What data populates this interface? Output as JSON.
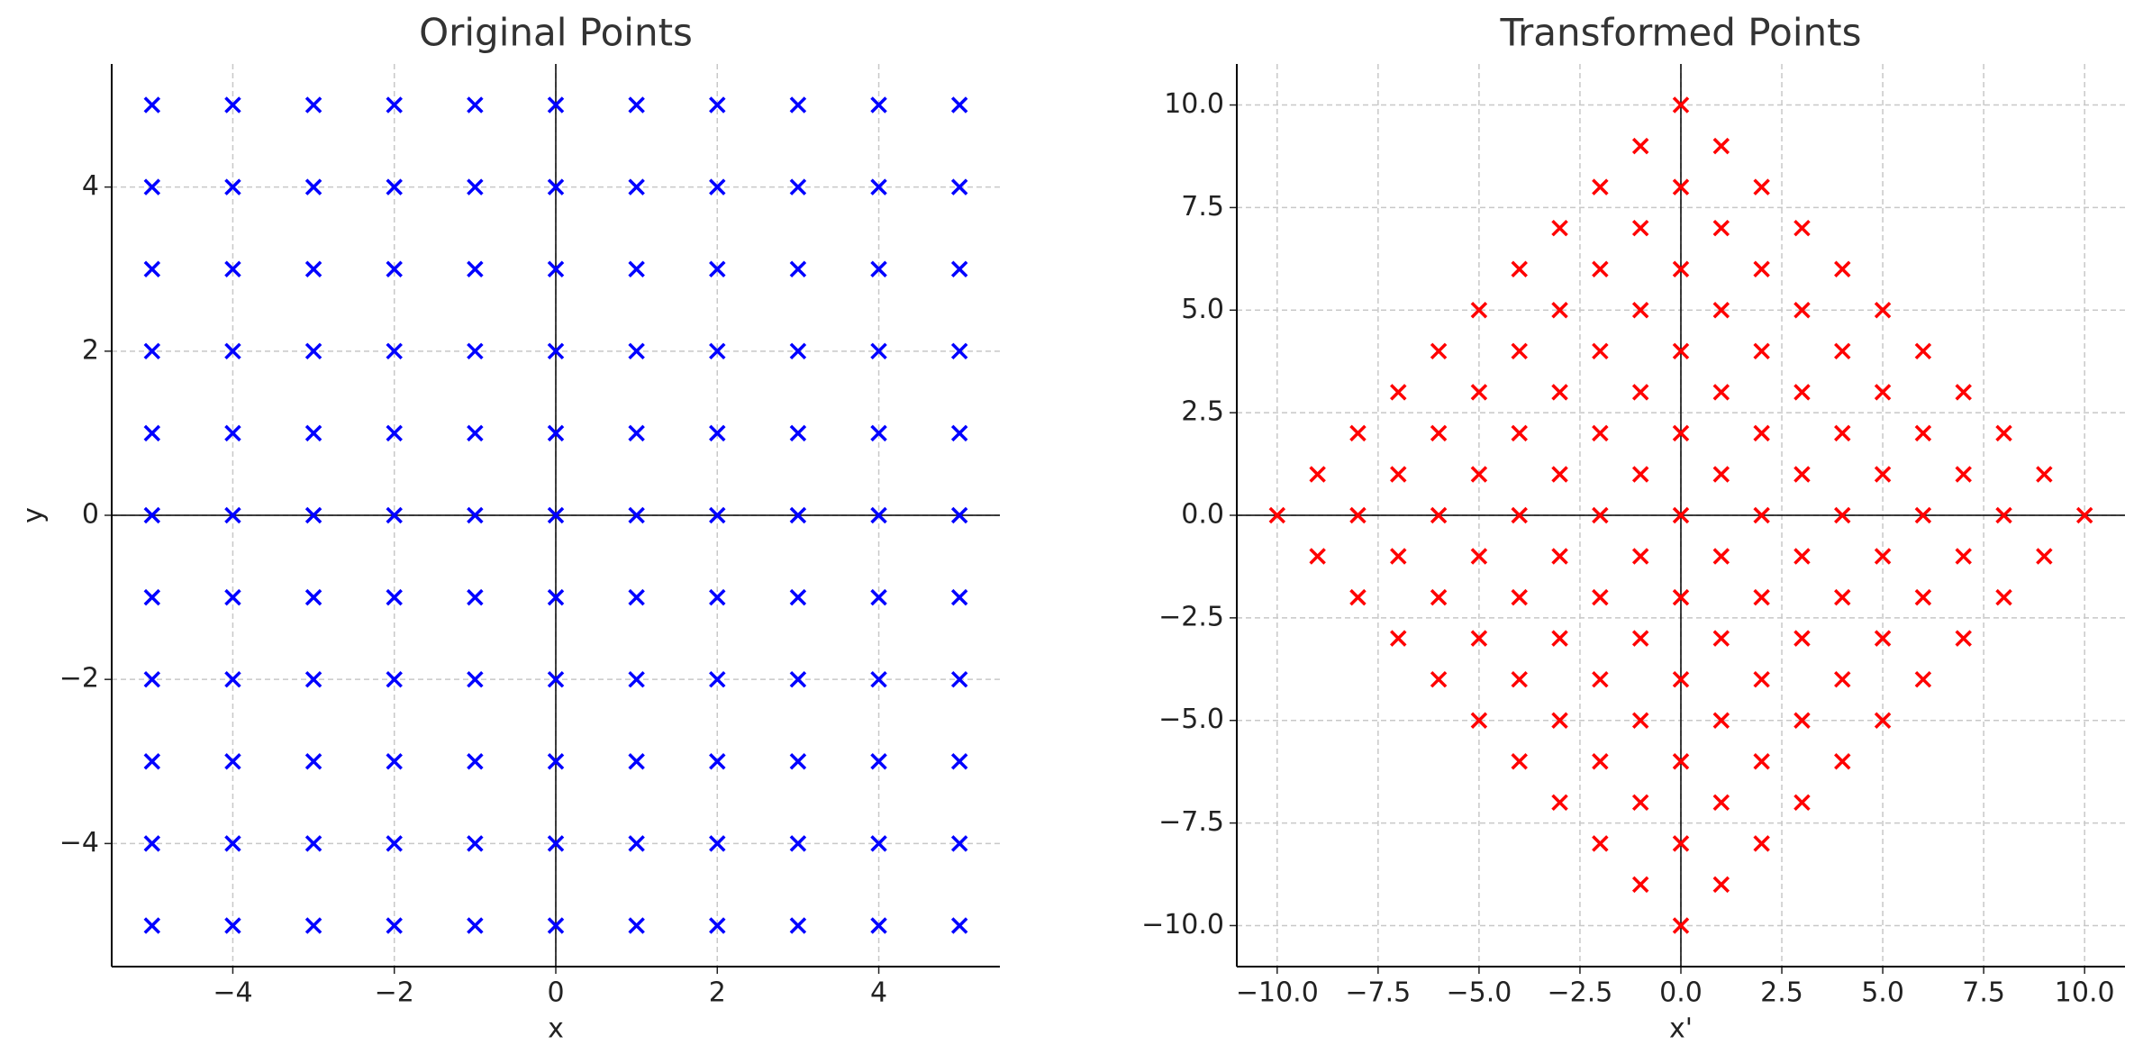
{
  "chart_data": [
    {
      "type": "scatter",
      "title": "Original Points",
      "xlabel": "x",
      "ylabel": "y",
      "color": "#0000ff",
      "marker": "x",
      "grid": true,
      "zero_lines": true,
      "xlim": [
        -5.5,
        5.5
      ],
      "ylim": [
        -5.5,
        5.5
      ],
      "xticks": [
        {
          "value": -4,
          "label": "−4"
        },
        {
          "value": -2,
          "label": "−2"
        },
        0,
        2,
        4
      ],
      "yticks": [
        {
          "value": -4,
          "label": "−4"
        },
        {
          "value": -2,
          "label": "−2"
        },
        0,
        2,
        4
      ],
      "x": [
        -5,
        -4,
        -3,
        -2,
        -1,
        0,
        1,
        2,
        3,
        4,
        5,
        -5,
        -4,
        -3,
        -2,
        -1,
        0,
        1,
        2,
        3,
        4,
        5,
        -5,
        -4,
        -3,
        -2,
        -1,
        0,
        1,
        2,
        3,
        4,
        5,
        -5,
        -4,
        -3,
        -2,
        -1,
        0,
        1,
        2,
        3,
        4,
        5,
        -5,
        -4,
        -3,
        -2,
        -1,
        0,
        1,
        2,
        3,
        4,
        5,
        -5,
        -4,
        -3,
        -2,
        -1,
        0,
        1,
        2,
        3,
        4,
        5,
        -5,
        -4,
        -3,
        -2,
        -1,
        0,
        1,
        2,
        3,
        4,
        5,
        -5,
        -4,
        -3,
        -2,
        -1,
        0,
        1,
        2,
        3,
        4,
        5,
        -5,
        -4,
        -3,
        -2,
        -1,
        0,
        1,
        2,
        3,
        4,
        5,
        -5,
        -4,
        -3,
        -2,
        -1,
        0,
        1,
        2,
        3,
        4,
        5,
        -5,
        -4,
        -3,
        -2,
        -1,
        0,
        1,
        2,
        3,
        4,
        5
      ],
      "values": [
        5,
        5,
        5,
        5,
        5,
        5,
        5,
        5,
        5,
        5,
        5,
        4,
        4,
        4,
        4,
        4,
        4,
        4,
        4,
        4,
        4,
        4,
        3,
        3,
        3,
        3,
        3,
        3,
        3,
        3,
        3,
        3,
        3,
        2,
        2,
        2,
        2,
        2,
        2,
        2,
        2,
        2,
        2,
        2,
        1,
        1,
        1,
        1,
        1,
        1,
        1,
        1,
        1,
        1,
        1,
        0,
        0,
        0,
        0,
        0,
        0,
        0,
        0,
        0,
        0,
        0,
        -1,
        -1,
        -1,
        -1,
        -1,
        -1,
        -1,
        -1,
        -1,
        -1,
        -1,
        -2,
        -2,
        -2,
        -2,
        -2,
        -2,
        -2,
        -2,
        -2,
        -2,
        -2,
        -3,
        -3,
        -3,
        -3,
        -3,
        -3,
        -3,
        -3,
        -3,
        -3,
        -3,
        -4,
        -4,
        -4,
        -4,
        -4,
        -4,
        -4,
        -4,
        -4,
        -4,
        -4,
        -5,
        -5,
        -5,
        -5,
        -5,
        -5,
        -5,
        -5,
        -5,
        -5,
        -5
      ]
    },
    {
      "type": "scatter",
      "title": "Transformed Points",
      "xlabel": "x'",
      "color": "#ff0000",
      "marker": "x",
      "grid": true,
      "zero_lines": true,
      "xlim": [
        -11,
        11
      ],
      "ylim": [
        -11,
        11
      ],
      "xticks": [
        {
          "value": -10,
          "label": "−10.0"
        },
        {
          "value": -7.5,
          "label": "−7.5"
        },
        {
          "value": -5,
          "label": "−5.0"
        },
        {
          "value": -2.5,
          "label": "−2.5"
        },
        {
          "value": 0,
          "label": "0.0"
        },
        2.5,
        {
          "value": 5,
          "label": "5.0"
        },
        7.5,
        {
          "value": 10,
          "label": "10.0"
        }
      ],
      "yticks": [
        {
          "value": -10,
          "label": "−10.0"
        },
        {
          "value": -7.5,
          "label": "−7.5"
        },
        {
          "value": -5,
          "label": "−5.0"
        },
        {
          "value": -2.5,
          "label": "−2.5"
        },
        {
          "value": 0,
          "label": "0.0"
        },
        2.5,
        {
          "value": 5,
          "label": "5.0"
        },
        7.5,
        {
          "value": 10,
          "label": "10.0"
        }
      ],
      "x": [
        0,
        1,
        2,
        3,
        4,
        5,
        6,
        7,
        8,
        9,
        10,
        -1,
        0,
        1,
        2,
        3,
        4,
        5,
        6,
        7,
        8,
        9,
        -2,
        -1,
        0,
        1,
        2,
        3,
        4,
        5,
        6,
        7,
        8,
        -3,
        -2,
        -1,
        0,
        1,
        2,
        3,
        4,
        5,
        6,
        7,
        -4,
        -3,
        -2,
        -1,
        0,
        1,
        2,
        3,
        4,
        5,
        6,
        -5,
        -4,
        -3,
        -2,
        -1,
        0,
        1,
        2,
        3,
        4,
        5,
        -6,
        -5,
        -4,
        -3,
        -2,
        -1,
        0,
        1,
        2,
        3,
        4,
        -7,
        -6,
        -5,
        -4,
        -3,
        -2,
        -1,
        0,
        1,
        2,
        3,
        -8,
        -7,
        -6,
        -5,
        -4,
        -3,
        -2,
        -1,
        0,
        1,
        2,
        -9,
        -8,
        -7,
        -6,
        -5,
        -4,
        -3,
        -2,
        -1,
        0,
        1,
        -10,
        -9,
        -8,
        -7,
        -6,
        -5,
        -4,
        -3,
        -2,
        -1,
        0
      ],
      "values": [
        10,
        9,
        8,
        7,
        6,
        5,
        4,
        3,
        2,
        1,
        0,
        9,
        8,
        7,
        6,
        5,
        4,
        3,
        2,
        1,
        0,
        -1,
        8,
        7,
        6,
        5,
        4,
        3,
        2,
        1,
        0,
        -1,
        -2,
        7,
        6,
        5,
        4,
        3,
        2,
        1,
        0,
        -1,
        -2,
        -3,
        6,
        5,
        4,
        3,
        2,
        1,
        0,
        -1,
        -2,
        -3,
        -4,
        5,
        4,
        3,
        2,
        1,
        0,
        -1,
        -2,
        -3,
        -4,
        -5,
        4,
        3,
        2,
        1,
        0,
        -1,
        -2,
        -3,
        -4,
        -5,
        -6,
        3,
        2,
        1,
        0,
        -1,
        -2,
        -3,
        -4,
        -5,
        -6,
        -7,
        2,
        1,
        0,
        -1,
        -2,
        -3,
        -4,
        -5,
        -6,
        -7,
        -8,
        1,
        0,
        -1,
        -2,
        -3,
        -4,
        -5,
        -6,
        -7,
        -8,
        -9,
        0,
        -1,
        -2,
        -3,
        -4,
        -5,
        -6,
        -7,
        -8,
        -9,
        -10
      ]
    }
  ]
}
